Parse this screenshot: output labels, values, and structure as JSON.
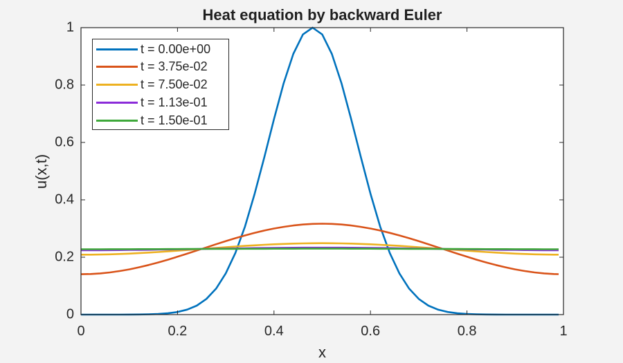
{
  "chart_data": {
    "type": "line",
    "title": "Heat equation by backward Euler",
    "xlabel": "x",
    "ylabel": "u(x,t)",
    "xlim": [
      0,
      1
    ],
    "ylim": [
      0,
      1
    ],
    "xticks": [
      "0",
      "0.2",
      "0.4",
      "0.6",
      "0.8",
      "1"
    ],
    "yticks": [
      "0",
      "0.2",
      "0.4",
      "0.6",
      "0.8",
      "1"
    ],
    "grid": false,
    "legend_position": "northwest",
    "x": [
      0,
      0.02,
      0.04,
      0.06,
      0.08,
      0.1,
      0.12,
      0.14,
      0.16,
      0.18,
      0.2,
      0.22,
      0.24,
      0.26,
      0.28,
      0.3,
      0.32,
      0.34,
      0.36,
      0.38,
      0.4,
      0.42,
      0.44,
      0.46,
      0.48,
      0.5,
      0.52,
      0.54,
      0.56,
      0.58,
      0.6,
      0.62,
      0.64,
      0.66,
      0.68,
      0.7,
      0.72,
      0.74,
      0.76,
      0.78,
      0.8,
      0.82,
      0.84,
      0.86,
      0.88,
      0.9,
      0.92,
      0.94,
      0.96,
      0.98,
      0.99
    ],
    "series": [
      {
        "name": "t = 0.00e+00",
        "color": "#0072BD",
        "values": [
          0.0,
          0.0,
          0.0,
          0.0,
          0.0001,
          0.0002,
          0.0004,
          0.001,
          0.0021,
          0.0045,
          0.0091,
          0.0173,
          0.0314,
          0.0548,
          0.0907,
          0.1437,
          0.2146,
          0.3074,
          0.4215,
          0.5488,
          0.6811,
          0.8057,
          0.9085,
          0.9763,
          1.0,
          0.9763,
          0.9085,
          0.8057,
          0.6811,
          0.5488,
          0.4215,
          0.3074,
          0.2146,
          0.1437,
          0.0907,
          0.0548,
          0.0314,
          0.0173,
          0.0091,
          0.0045,
          0.0021,
          0.001,
          0.0004,
          0.0002,
          0.0001,
          0.0,
          0.0,
          0.0,
          0.0,
          0.0,
          0.0
        ]
      },
      {
        "name": "t = 3.75e-02",
        "color": "#D95319",
        "values": [
          0.1408,
          0.1415,
          0.1436,
          0.147,
          0.1517,
          0.1576,
          0.1647,
          0.1727,
          0.1816,
          0.1913,
          0.2016,
          0.2123,
          0.2233,
          0.2343,
          0.2453,
          0.256,
          0.2663,
          0.276,
          0.2849,
          0.293,
          0.3,
          0.3059,
          0.3106,
          0.314,
          0.3161,
          0.3168,
          0.3161,
          0.314,
          0.3106,
          0.3059,
          0.3,
          0.293,
          0.2849,
          0.276,
          0.2663,
          0.256,
          0.2453,
          0.2343,
          0.2233,
          0.2123,
          0.2016,
          0.1913,
          0.1816,
          0.1727,
          0.1647,
          0.1576,
          0.1517,
          0.147,
          0.1436,
          0.1415,
          0.141
        ]
      },
      {
        "name": "t = 7.50e-02",
        "color": "#EDB120",
        "values": [
          0.2088,
          0.209,
          0.2094,
          0.2102,
          0.2113,
          0.2126,
          0.2142,
          0.2161,
          0.2181,
          0.2203,
          0.2226,
          0.2251,
          0.2275,
          0.2301,
          0.2325,
          0.235,
          0.2373,
          0.2395,
          0.2415,
          0.2434,
          0.245,
          0.2463,
          0.2474,
          0.2482,
          0.2486,
          0.2488,
          0.2486,
          0.2482,
          0.2474,
          0.2463,
          0.245,
          0.2434,
          0.2415,
          0.2395,
          0.2373,
          0.235,
          0.2325,
          0.2301,
          0.2275,
          0.2251,
          0.2226,
          0.2203,
          0.2181,
          0.2161,
          0.2142,
          0.2126,
          0.2113,
          0.2102,
          0.2094,
          0.209,
          0.2088
        ]
      },
      {
        "name": "t = 1.13e-01",
        "color": "#8B2BD9",
        "values": [
          0.2243,
          0.2243,
          0.2244,
          0.2246,
          0.2249,
          0.2252,
          0.2255,
          0.2259,
          0.2264,
          0.2269,
          0.2274,
          0.228,
          0.2285,
          0.2291,
          0.2296,
          0.2302,
          0.2307,
          0.2312,
          0.2317,
          0.2321,
          0.2324,
          0.2327,
          0.233,
          0.2332,
          0.2333,
          0.2333,
          0.2333,
          0.2332,
          0.233,
          0.2327,
          0.2324,
          0.2321,
          0.2317,
          0.2312,
          0.2307,
          0.2302,
          0.2296,
          0.2291,
          0.2285,
          0.228,
          0.2274,
          0.2269,
          0.2264,
          0.2259,
          0.2255,
          0.2252,
          0.2249,
          0.2246,
          0.2244,
          0.2243,
          0.2243
        ]
      },
      {
        "name": "t = 1.50e-01",
        "color": "#3EA83A",
        "values": [
          0.2278,
          0.2278,
          0.2278,
          0.2279,
          0.2279,
          0.228,
          0.2281,
          0.2282,
          0.2283,
          0.2284,
          0.2285,
          0.2286,
          0.2287,
          0.2289,
          0.229,
          0.2291,
          0.2292,
          0.2293,
          0.2294,
          0.2295,
          0.2296,
          0.2297,
          0.2297,
          0.2298,
          0.2298,
          0.2298,
          0.2298,
          0.2298,
          0.2297,
          0.2297,
          0.2296,
          0.2295,
          0.2294,
          0.2293,
          0.2292,
          0.2291,
          0.229,
          0.2289,
          0.2287,
          0.2286,
          0.2285,
          0.2284,
          0.2283,
          0.2282,
          0.2281,
          0.228,
          0.2279,
          0.2279,
          0.2278,
          0.2278,
          0.2278
        ]
      }
    ]
  }
}
